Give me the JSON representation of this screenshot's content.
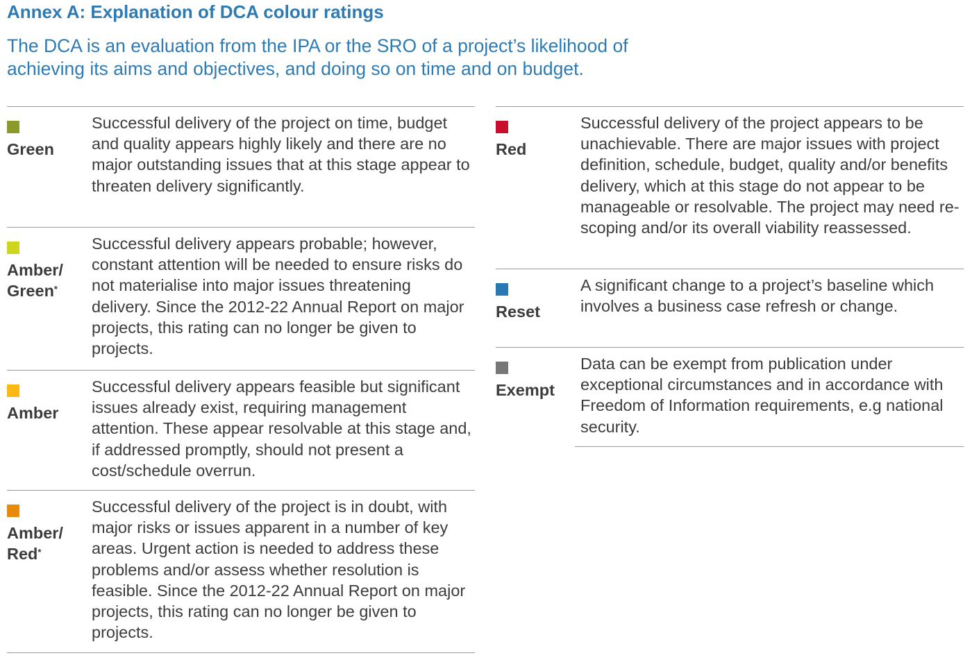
{
  "title": "Annex A: Explanation of DCA colour ratings",
  "intro": "The DCA is an evaluation from the IPA or the SRO of a project’s likelihood of achieving its aims and objectives, and doing so on time and on budget.",
  "left_ratings": [
    {
      "name": "Green",
      "asterisk": "",
      "color": "#8c9a2c",
      "description": "Successful delivery of the project on time, budget and quality appears highly likely and there are no major outstanding issues that at this stage appear to threaten delivery significantly."
    },
    {
      "name": "Amber/ Green",
      "asterisk": "*",
      "color": "#cdd51c",
      "description": "Successful delivery appears probable; however, constant attention will be needed to ensure risks do not materialise into major issues threatening delivery. Since the 2012-22 Annual Report on major projects, this rating can no longer be given to projects."
    },
    {
      "name": "Amber",
      "asterisk": "",
      "color": "#fdb913",
      "description": "Successful delivery appears feasible but significant issues already exist, requiring management attention. These appear resolvable at this stage and, if addressed promptly, should not present a cost/schedule overrun."
    },
    {
      "name": "Amber/ Red",
      "asterisk": "*",
      "color": "#e8890b",
      "description": "Successful delivery of the project is in doubt, with major risks or issues apparent in a number of key areas. Urgent action is needed to address these problems and/or assess whether resolution is feasible. Since the 2012-22 Annual Report on major projects, this rating can no longer be given to projects."
    }
  ],
  "right_ratings": [
    {
      "name": "Red",
      "asterisk": "",
      "color": "#c8102e",
      "description": "Successful delivery of the project appears to be unachievable. There are major issues with project definition, schedule, budget, quality and/or benefits delivery, which at this stage do not appear to be manageable or resolvable. The project may need re-scoping and/or its overall viability reassessed."
    },
    {
      "name": "Reset",
      "asterisk": "",
      "color": "#2878b4",
      "description": "A significant change to a project’s baseline which involves a business case refresh or change."
    },
    {
      "name": "Exempt",
      "asterisk": "",
      "color": "#777777",
      "description": "Data can be exempt from publication under exceptional circumstances and in accordance with Freedom of Information requirements, e.g national security."
    }
  ]
}
